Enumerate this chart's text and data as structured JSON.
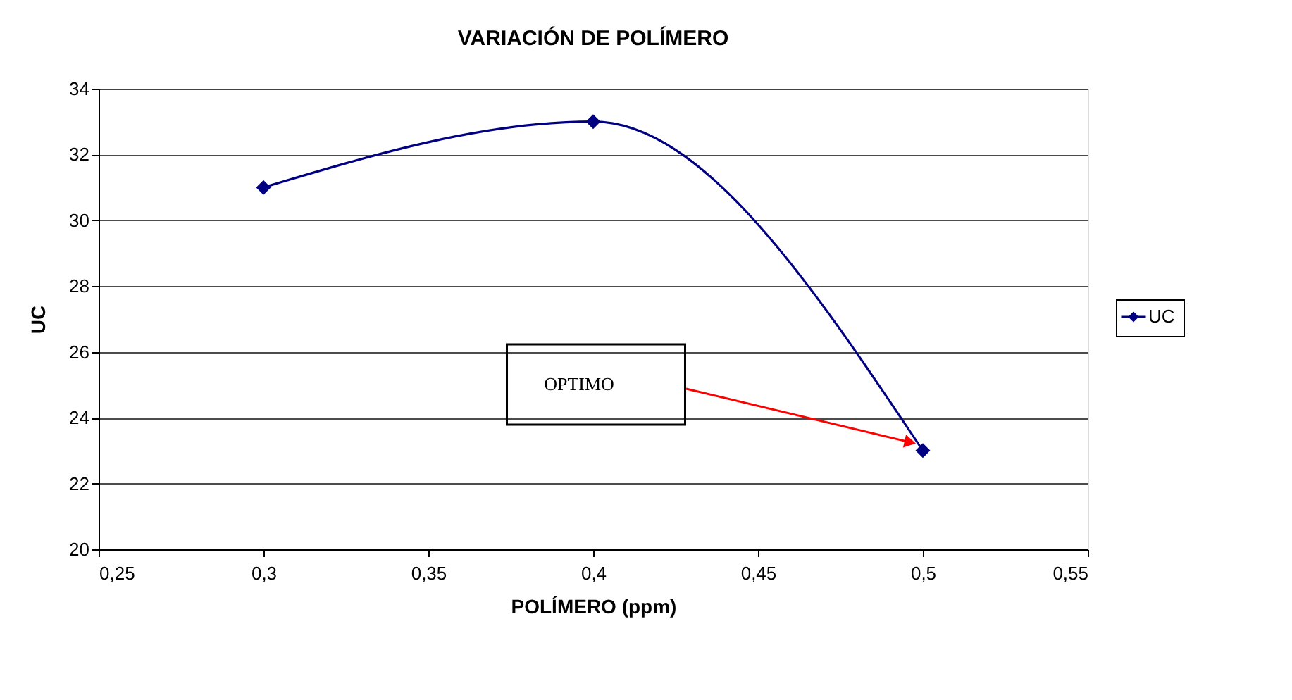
{
  "chart_data": {
    "type": "line",
    "title": "VARIACIÓN DE POLÍMERO",
    "xlabel": "POLÍMERO (ppm)",
    "ylabel": "UC",
    "x": [
      0.3,
      0.4,
      0.5
    ],
    "series": [
      {
        "name": "UC",
        "color": "#000080",
        "values": [
          31,
          33,
          23
        ]
      }
    ],
    "xlim": [
      0.25,
      0.55
    ],
    "xticks": [
      {
        "value": 0.25,
        "label": "0,25"
      },
      {
        "value": 0.3,
        "label": "0,3"
      },
      {
        "value": 0.35,
        "label": "0,35"
      },
      {
        "value": 0.4,
        "label": "0,4"
      },
      {
        "value": 0.45,
        "label": "0,45"
      },
      {
        "value": 0.5,
        "label": "0,5"
      },
      {
        "value": 0.55,
        "label": "0,55"
      }
    ],
    "ylim": [
      20,
      34
    ],
    "yticks": [
      20,
      22,
      24,
      26,
      28,
      30,
      32,
      34
    ],
    "grid": "y",
    "legend": "right",
    "marker": "diamond",
    "annotations": [
      "OPTIMO"
    ]
  }
}
